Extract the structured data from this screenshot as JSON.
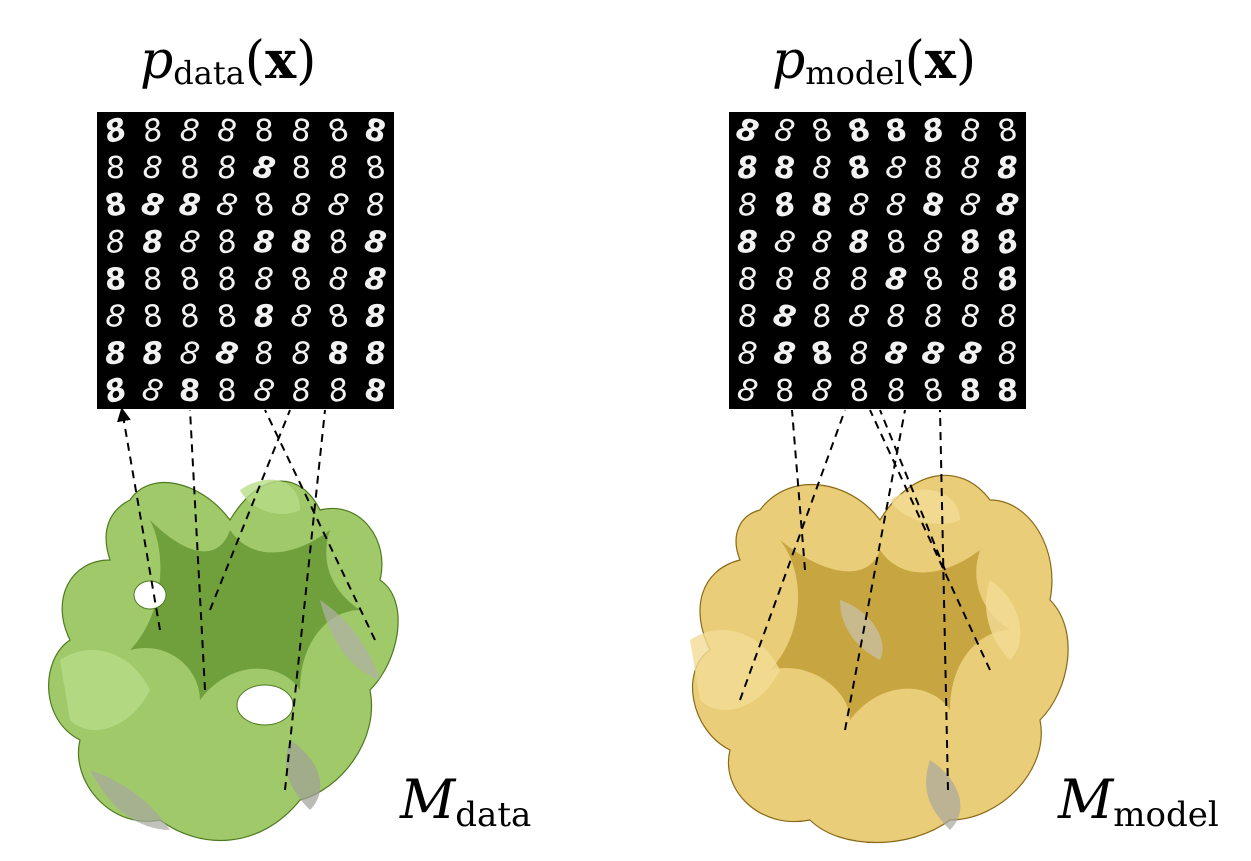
{
  "left": {
    "title_p": "p",
    "title_sub": "data",
    "title_open": "(",
    "title_x": "x",
    "title_close": ")",
    "manifold_symbol": "M",
    "manifold_sub": "data",
    "manifold_color": "#86b84a"
  },
  "right": {
    "title_p": "p",
    "title_sub": "model",
    "title_open": "(",
    "title_x": "x",
    "title_close": ")",
    "manifold_symbol": "M",
    "manifold_sub": "model",
    "manifold_color": "#d8b84a"
  },
  "grid": {
    "rows": 8,
    "cols": 8,
    "digit": "8"
  }
}
